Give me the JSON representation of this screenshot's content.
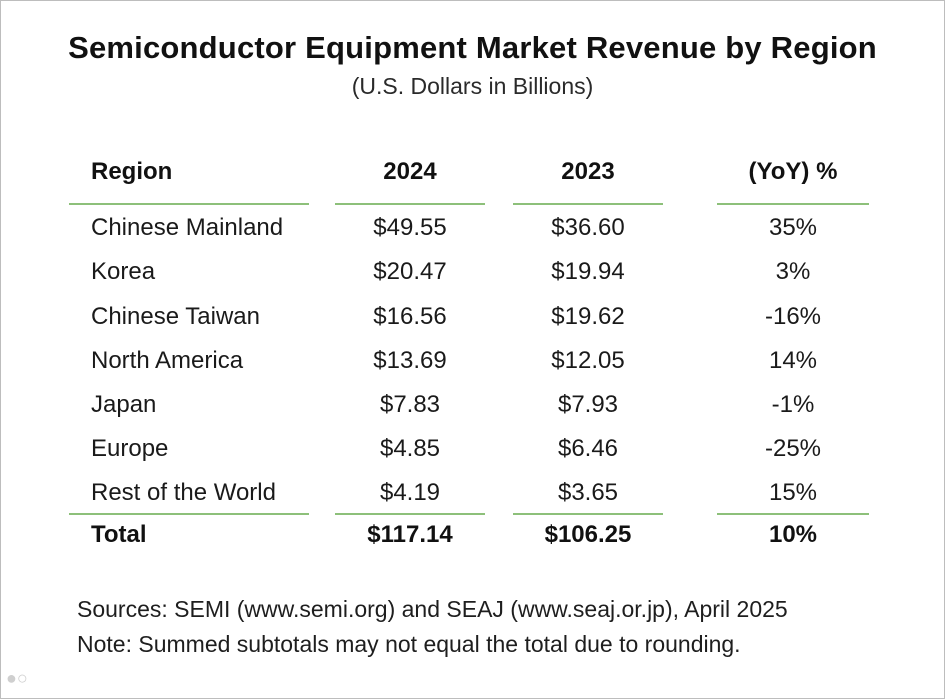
{
  "chart_data": {
    "type": "table",
    "title": "Semiconductor Equipment Market Revenue by Region",
    "subtitle": "(U.S. Dollars in Billions)",
    "columns": [
      "Region",
      "2024",
      "2023",
      "(YoY) %"
    ],
    "rows": [
      {
        "region": "Chinese Mainland",
        "y2024": "$49.55",
        "y2023": "$36.60",
        "yoy": "35%"
      },
      {
        "region": "Korea",
        "y2024": "$20.47",
        "y2023": "$19.94",
        "yoy": "3%"
      },
      {
        "region": "Chinese Taiwan",
        "y2024": "$16.56",
        "y2023": "$19.62",
        "yoy": "-16%"
      },
      {
        "region": "North America",
        "y2024": "$13.69",
        "y2023": "$12.05",
        "yoy": "14%"
      },
      {
        "region": "Japan",
        "y2024": "$7.83",
        "y2023": "$7.93",
        "yoy": "-1%"
      },
      {
        "region": "Europe",
        "y2024": "$4.85",
        "y2023": "$6.46",
        "yoy": "-25%"
      },
      {
        "region": "Rest of the World",
        "y2024": "$4.19",
        "y2023": "$3.65",
        "yoy": "15%"
      }
    ],
    "total": {
      "region": "Total",
      "y2024": "$117.14",
      "y2023": "$106.25",
      "yoy": "10%"
    },
    "values_2024": [
      49.55,
      20.47,
      16.56,
      13.69,
      7.83,
      4.85,
      4.19
    ],
    "values_2023": [
      36.6,
      19.94,
      19.62,
      12.05,
      7.93,
      6.46,
      3.65
    ],
    "yoy_percent": [
      35,
      3,
      -16,
      14,
      -1,
      -25,
      15
    ]
  },
  "footnotes": {
    "sources": "Sources: SEMI (www.semi.org) and SEAJ (www.seaj.or.jp), April 2025",
    "note": "Note: Summed subtotals may not equal the total due to rounding."
  },
  "colors": {
    "rule": "#8dc07a",
    "text": "#111111"
  }
}
